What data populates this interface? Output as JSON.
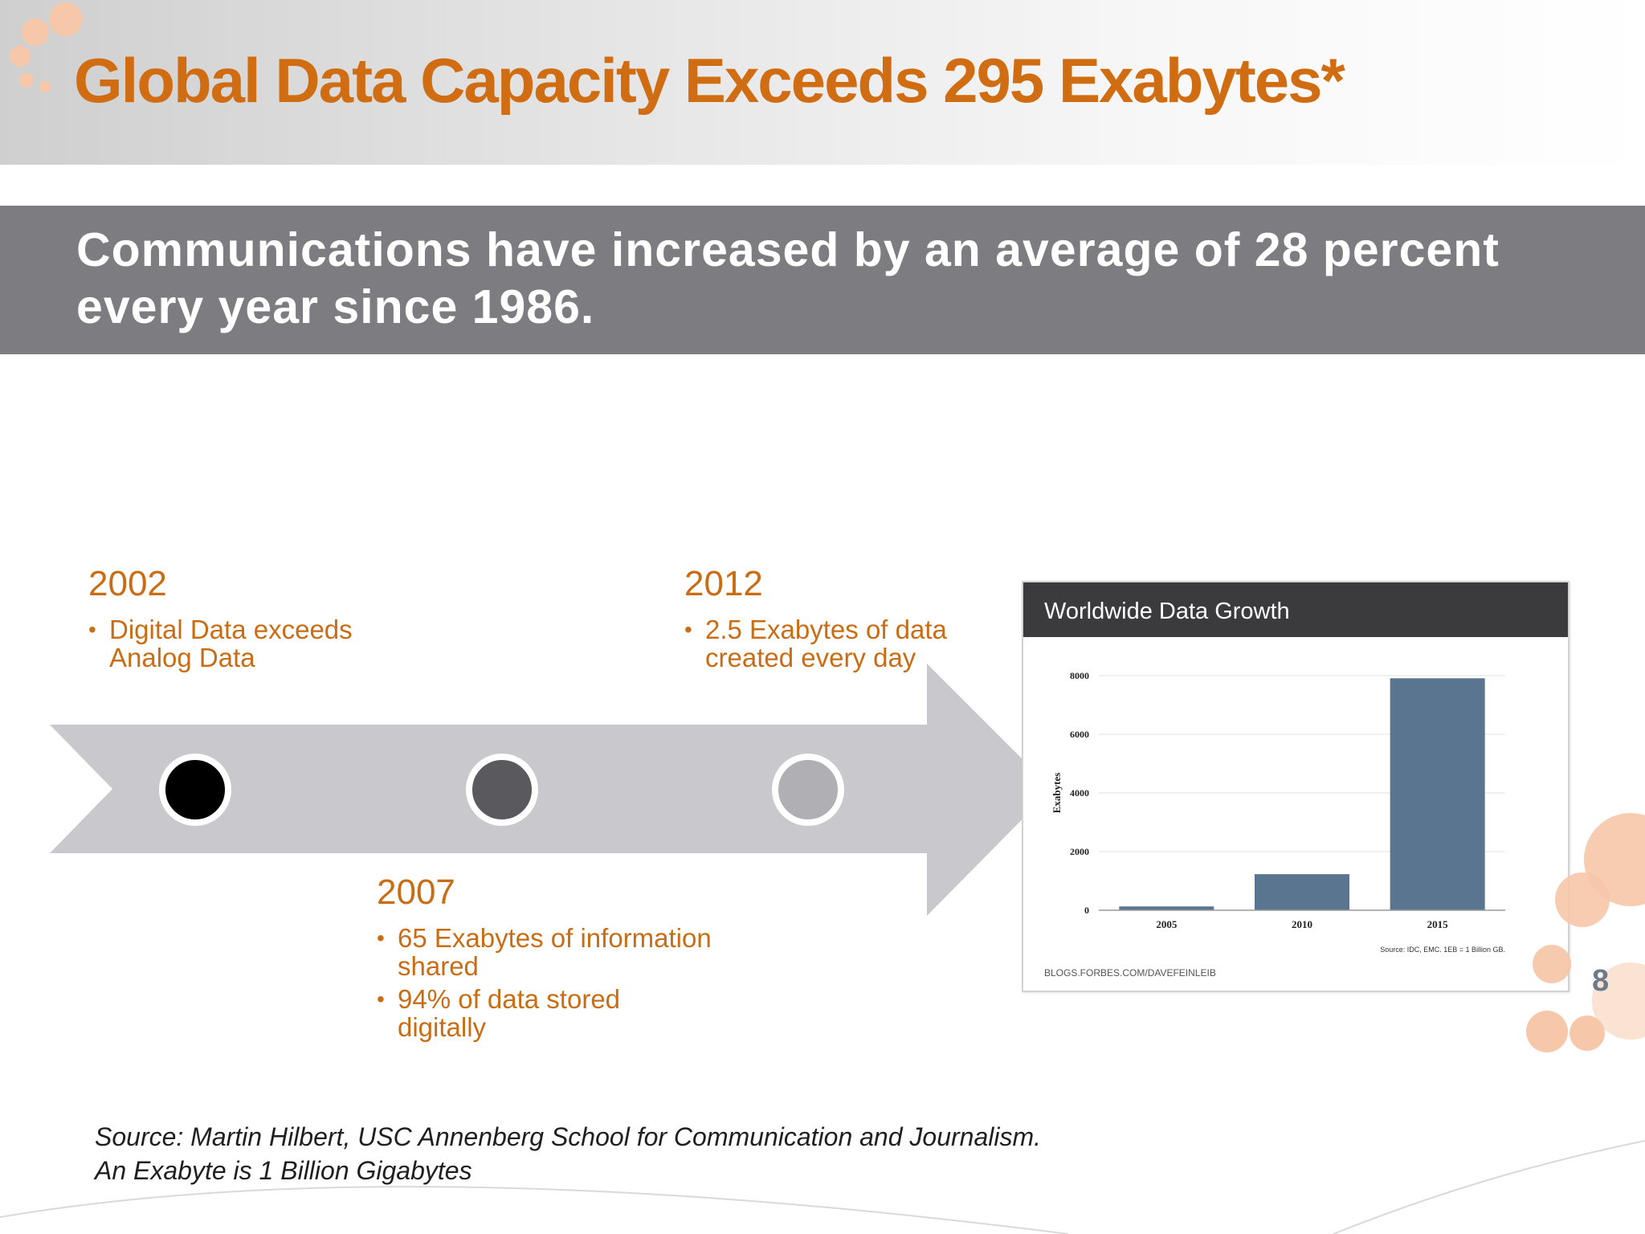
{
  "slide": {
    "title": "Global Data Capacity Exceeds 295 Exabytes*",
    "banner": "Communications have increased by an average of 28 percent every year since 1986.",
    "page_number": "8",
    "source_line1": "Source: Martin Hilbert, USC Annenberg School for Communication and Journalism.",
    "source_line2": "An Exabyte is 1 Billion Gigabytes"
  },
  "timeline": {
    "milestones": [
      {
        "year": "2002",
        "bullets": [
          "Digital Data exceeds Analog Data"
        ]
      },
      {
        "year": "2007",
        "bullets": [
          "65 Exabytes of information shared",
          "94% of data stored digitally"
        ]
      },
      {
        "year": "2012",
        "bullets": [
          "2.5 Exabytes of data created every day"
        ]
      }
    ],
    "markers": [
      {
        "fill": "#000000"
      },
      {
        "fill": "#5a595e"
      },
      {
        "fill": "#b0afb4"
      }
    ],
    "arrow_color": "#c9c8cc"
  },
  "chart_data": {
    "type": "bar",
    "title": "Worldwide Data Growth",
    "ylabel": "Exabytes",
    "xlabel": "",
    "categories": [
      "2005",
      "2010",
      "2015"
    ],
    "values": [
      130,
      1230,
      7910
    ],
    "ylim": [
      0,
      8000
    ],
    "yticks": [
      "0",
      "2000",
      "4000",
      "6000",
      "8000"
    ],
    "grid": true,
    "bar_color": "#5a7590",
    "header_color": "#3b3b3d",
    "note": "Source: IDC, EMC. 1EB = 1 Billion GB.",
    "credit": "BLOGS.FORBES.COM/DAVEFEINLEIB"
  },
  "colors": {
    "accent_orange": "#d06d12",
    "banner_gray": "#7d7c80",
    "deco_peach": "#f6c7a8"
  }
}
